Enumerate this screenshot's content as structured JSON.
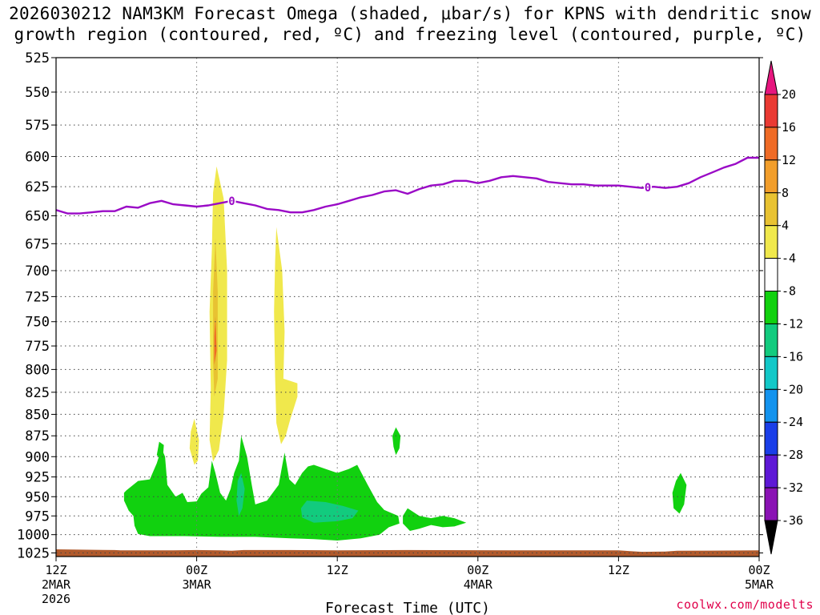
{
  "chart_data": {
    "type": "heatmap",
    "title_line1": "2026030212 NAM3KM Forecast Omega (shaded, μbar/s) for KPNS with dendritic snow",
    "title_line2": "growth region (contoured, red, ºC) and freezing level (contoured, purple, ºC)",
    "xlabel": "Forecast Time (UTC)",
    "x_ticks": [
      {
        "hour": 0,
        "lines": [
          "12Z",
          "2MAR",
          "2026"
        ]
      },
      {
        "hour": 12,
        "lines": [
          "00Z",
          "3MAR"
        ]
      },
      {
        "hour": 24,
        "lines": [
          "12Z"
        ]
      },
      {
        "hour": 36,
        "lines": [
          "00Z",
          "4MAR"
        ]
      },
      {
        "hour": 48,
        "lines": [
          "12Z"
        ]
      },
      {
        "hour": 60,
        "lines": [
          "00Z",
          "5MAR"
        ]
      }
    ],
    "xlim_hours": [
      0,
      60
    ],
    "y_ticks": [
      525,
      550,
      575,
      600,
      625,
      650,
      675,
      700,
      725,
      750,
      775,
      800,
      825,
      850,
      875,
      900,
      925,
      950,
      975,
      1000,
      1025
    ],
    "ylim_hPa": [
      525,
      1030
    ],
    "y_scale": "log",
    "grid": true,
    "colorbar": {
      "labels": [
        "20",
        "16",
        "12",
        "8",
        "4",
        "-4",
        "-8",
        "-12",
        "-16",
        "-20",
        "-24",
        "-28",
        "-32",
        "-36"
      ],
      "colors": [
        "#e6167e",
        "#ea3a33",
        "#ef6b26",
        "#f29e2b",
        "#e8c232",
        "#f0e84c",
        "#ffffff",
        "#11d10f",
        "#12cb7e",
        "#12c8c8",
        "#1393ee",
        "#1a3ee8",
        "#5e18d6",
        "#8a12b4",
        "#a90dc6",
        "#a8a8a8",
        "#000000"
      ]
    },
    "freezing_level": {
      "value_label": "0",
      "label_hours": [
        15.0,
        50.5
      ],
      "points": [
        [
          0,
          645
        ],
        [
          1,
          648
        ],
        [
          2,
          648
        ],
        [
          3,
          647
        ],
        [
          4,
          646
        ],
        [
          5,
          646
        ],
        [
          6,
          642
        ],
        [
          7,
          643
        ],
        [
          8,
          639
        ],
        [
          9,
          637
        ],
        [
          10,
          640
        ],
        [
          11,
          641
        ],
        [
          12,
          642
        ],
        [
          13,
          641
        ],
        [
          14,
          639
        ],
        [
          15,
          637
        ],
        [
          16,
          639
        ],
        [
          17,
          641
        ],
        [
          18,
          644
        ],
        [
          19,
          645
        ],
        [
          20,
          647
        ],
        [
          21,
          647
        ],
        [
          22,
          645
        ],
        [
          23,
          642
        ],
        [
          24,
          640
        ],
        [
          25,
          637
        ],
        [
          26,
          634
        ],
        [
          27,
          632
        ],
        [
          28,
          629
        ],
        [
          29,
          628
        ],
        [
          30,
          631
        ],
        [
          31,
          627
        ],
        [
          32,
          624
        ],
        [
          33,
          623
        ],
        [
          34,
          620
        ],
        [
          35,
          620
        ],
        [
          36,
          622
        ],
        [
          37,
          620
        ],
        [
          38,
          617
        ],
        [
          39,
          616
        ],
        [
          40,
          617
        ],
        [
          41,
          618
        ],
        [
          42,
          621
        ],
        [
          43,
          622
        ],
        [
          44,
          623
        ],
        [
          45,
          623
        ],
        [
          46,
          624
        ],
        [
          47,
          624
        ],
        [
          48,
          624
        ],
        [
          49,
          625
        ],
        [
          50,
          626
        ],
        [
          51,
          625
        ],
        [
          52,
          626
        ],
        [
          53,
          625
        ],
        [
          54,
          622
        ],
        [
          55,
          617
        ],
        [
          56,
          613
        ],
        [
          57,
          609
        ],
        [
          58,
          606
        ],
        [
          59,
          601
        ],
        [
          60,
          601
        ]
      ]
    },
    "series": [
      {
        "value": 6,
        "color": "#f0e84c",
        "points": [
          [
            13.7,
            608
          ],
          [
            14.3,
            635
          ],
          [
            14.6,
            700
          ],
          [
            14.6,
            790
          ],
          [
            14.3,
            850
          ],
          [
            13.9,
            892
          ],
          [
            13.4,
            906
          ],
          [
            13.1,
            880
          ],
          [
            13.2,
            820
          ],
          [
            13.1,
            740
          ],
          [
            13.3,
            680
          ],
          [
            13.4,
            630
          ]
        ]
      },
      {
        "value": 6,
        "color": "#f0e84c",
        "points": [
          [
            18.8,
            660
          ],
          [
            19.3,
            700
          ],
          [
            19.5,
            760
          ],
          [
            19.4,
            810
          ],
          [
            20.6,
            815
          ],
          [
            20.6,
            830
          ],
          [
            20.0,
            855
          ],
          [
            19.6,
            875
          ],
          [
            19.2,
            885
          ],
          [
            18.8,
            860
          ],
          [
            18.7,
            810
          ],
          [
            18.6,
            740
          ],
          [
            18.7,
            690
          ]
        ]
      },
      {
        "value": 6,
        "color": "#f0e84c",
        "points": [
          [
            11.8,
            855
          ],
          [
            12.2,
            880
          ],
          [
            12.1,
            905
          ],
          [
            11.8,
            910
          ],
          [
            11.4,
            890
          ],
          [
            11.5,
            870
          ]
        ]
      },
      {
        "value": 10,
        "color": "#e8c232",
        "points": [
          [
            13.6,
            670
          ],
          [
            13.8,
            720
          ],
          [
            13.8,
            810
          ],
          [
            13.5,
            830
          ],
          [
            13.4,
            790
          ],
          [
            13.4,
            720
          ]
        ]
      },
      {
        "value": 14,
        "color": "#ef6b26",
        "points": [
          [
            13.6,
            745
          ],
          [
            13.7,
            780
          ],
          [
            13.5,
            795
          ],
          [
            13.5,
            765
          ]
        ]
      },
      {
        "value": -6,
        "color": "#11d10f",
        "points": [
          [
            6.0,
            942
          ],
          [
            7.0,
            930
          ],
          [
            8.0,
            928
          ],
          [
            8.6,
            908
          ],
          [
            9.0,
            890
          ],
          [
            9.3,
            900
          ],
          [
            9.5,
            935
          ],
          [
            10.2,
            950
          ],
          [
            10.8,
            945
          ],
          [
            11.2,
            957
          ],
          [
            12.0,
            956
          ],
          [
            12.4,
            946
          ],
          [
            13.0,
            938
          ],
          [
            13.3,
            905
          ],
          [
            13.6,
            920
          ],
          [
            14.0,
            945
          ],
          [
            14.5,
            955
          ],
          [
            14.9,
            940
          ],
          [
            15.2,
            920
          ],
          [
            15.6,
            905
          ],
          [
            15.8,
            875
          ],
          [
            16.3,
            900
          ],
          [
            16.7,
            935
          ],
          [
            17.0,
            960
          ],
          [
            18.0,
            955
          ],
          [
            19.0,
            935
          ],
          [
            19.5,
            895
          ],
          [
            19.9,
            928
          ],
          [
            20.4,
            935
          ],
          [
            21.0,
            920
          ],
          [
            21.5,
            912
          ],
          [
            22.0,
            910
          ],
          [
            23.0,
            915
          ],
          [
            24.0,
            920
          ],
          [
            25.0,
            915
          ],
          [
            25.7,
            910
          ],
          [
            26.6,
            935
          ],
          [
            27.4,
            957
          ],
          [
            28.0,
            967
          ],
          [
            29.2,
            975
          ],
          [
            29.3,
            985
          ],
          [
            28.4,
            990
          ],
          [
            27.6,
            1000
          ],
          [
            26.0,
            1005
          ],
          [
            24.0,
            1008
          ],
          [
            22.0,
            1006
          ],
          [
            20.0,
            1005
          ],
          [
            17.0,
            1003
          ],
          [
            14.0,
            1003
          ],
          [
            11.0,
            1002
          ],
          [
            8.0,
            1002
          ],
          [
            7.0,
            999
          ],
          [
            6.7,
            988
          ],
          [
            6.6,
            975
          ],
          [
            6.2,
            968
          ],
          [
            5.8,
            955
          ],
          [
            5.8,
            945
          ]
        ]
      },
      {
        "value": -6,
        "color": "#11d10f",
        "points": [
          [
            8.6,
            898
          ],
          [
            8.8,
            882
          ],
          [
            9.2,
            886
          ],
          [
            9.1,
            905
          ]
        ]
      },
      {
        "value": -6,
        "color": "#11d10f",
        "points": [
          [
            30.0,
            965
          ],
          [
            31.0,
            975
          ],
          [
            32.0,
            978
          ],
          [
            33.0,
            975
          ],
          [
            34.0,
            978
          ],
          [
            35.0,
            984
          ],
          [
            34.0,
            989
          ],
          [
            33.0,
            990
          ],
          [
            32.0,
            987
          ],
          [
            31.0,
            992
          ],
          [
            30.2,
            995
          ],
          [
            29.6,
            985
          ],
          [
            29.6,
            975
          ]
        ]
      },
      {
        "value": -6,
        "color": "#11d10f",
        "points": [
          [
            29.0,
            865
          ],
          [
            29.4,
            875
          ],
          [
            29.3,
            890
          ],
          [
            29.0,
            898
          ],
          [
            28.8,
            888
          ],
          [
            28.7,
            875
          ]
        ]
      },
      {
        "value": -6,
        "color": "#11d10f",
        "points": [
          [
            53.3,
            920
          ],
          [
            53.8,
            935
          ],
          [
            53.6,
            960
          ],
          [
            53.2,
            972
          ],
          [
            52.7,
            965
          ],
          [
            52.6,
            945
          ],
          [
            52.9,
            930
          ]
        ]
      },
      {
        "value": -10,
        "color": "#12cb7e",
        "points": [
          [
            21.4,
            955
          ],
          [
            23.0,
            957
          ],
          [
            24.5,
            962
          ],
          [
            25.8,
            968
          ],
          [
            25.3,
            978
          ],
          [
            24.0,
            982
          ],
          [
            22.0,
            984
          ],
          [
            21.0,
            977
          ],
          [
            20.9,
            965
          ]
        ]
      },
      {
        "value": -10,
        "color": "#12cb7e",
        "points": [
          [
            15.8,
            920
          ],
          [
            16.1,
            940
          ],
          [
            15.9,
            965
          ],
          [
            15.6,
            975
          ],
          [
            15.4,
            955
          ],
          [
            15.5,
            930
          ]
        ]
      }
    ],
    "surface": {
      "color": "#b05a2c",
      "points": [
        [
          0,
          1020
        ],
        [
          5,
          1021
        ],
        [
          5.5,
          1021.5
        ],
        [
          10,
          1021.5
        ],
        [
          12,
          1021
        ],
        [
          14,
          1021.5
        ],
        [
          15,
          1022
        ],
        [
          16,
          1021
        ],
        [
          20,
          1021
        ],
        [
          24,
          1021.5
        ],
        [
          30,
          1021
        ],
        [
          40,
          1021.5
        ],
        [
          48,
          1021.5
        ],
        [
          49,
          1022.5
        ],
        [
          50,
          1023.5
        ],
        [
          52,
          1023
        ],
        [
          53,
          1022
        ],
        [
          60,
          1021.5
        ]
      ]
    }
  },
  "credit": "coolwx.com/modelts"
}
